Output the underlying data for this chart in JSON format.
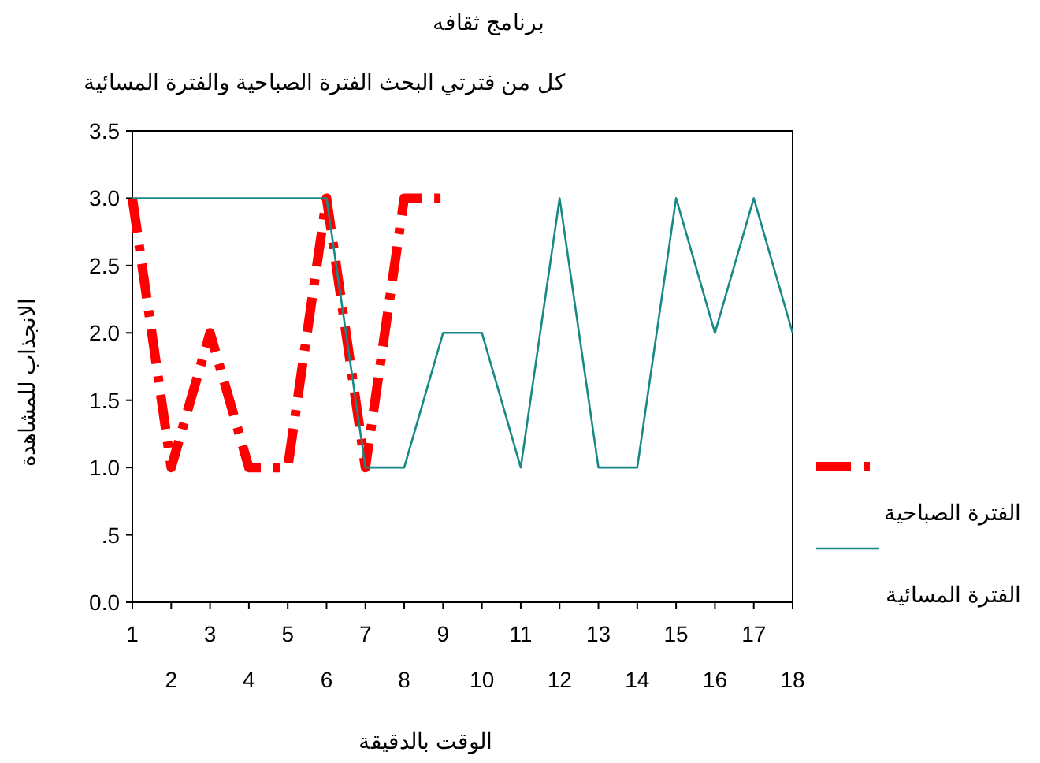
{
  "chart_data": {
    "type": "line",
    "title": "برنامج ثقافه",
    "subtitle": "كل من فترتي البحث الفترة الصباحية والفترة المسائية",
    "xlabel": "الوقت بالدقيقة",
    "ylabel": "الانجذاب للمشاهدة",
    "categories": [
      "1",
      "2",
      "3",
      "4",
      "5",
      "6",
      "7",
      "8",
      "9",
      "10",
      "11",
      "12",
      "13",
      "14",
      "15",
      "16",
      "17",
      "18"
    ],
    "series": [
      {
        "name": "الفترة الصباحية",
        "color": "#ff0000",
        "line_style": "dashed",
        "values": [
          3,
          1,
          2,
          1,
          1,
          3,
          1,
          3,
          3,
          null,
          null,
          null,
          null,
          null,
          null,
          null,
          null,
          null
        ]
      },
      {
        "name": "الفترة المسائية",
        "color": "#178a86",
        "line_style": "solid",
        "values": [
          3,
          3,
          3,
          3,
          3,
          3,
          1,
          1,
          2,
          2,
          1,
          3,
          1,
          1,
          3,
          2,
          3,
          2
        ]
      }
    ],
    "ylim": [
      0,
      3.5
    ],
    "yticks": [
      {
        "value": 0,
        "label": "0.0"
      },
      {
        "value": 0.5,
        "label": ".5"
      },
      {
        "value": 1,
        "label": "1.0"
      },
      {
        "value": 1.5,
        "label": "1.5"
      },
      {
        "value": 2,
        "label": "2.0"
      },
      {
        "value": 2.5,
        "label": "2.5"
      },
      {
        "value": 3,
        "label": "3.0"
      },
      {
        "value": 3.5,
        "label": "3.5"
      }
    ],
    "grid": false,
    "legend": "right",
    "marker": "none"
  }
}
